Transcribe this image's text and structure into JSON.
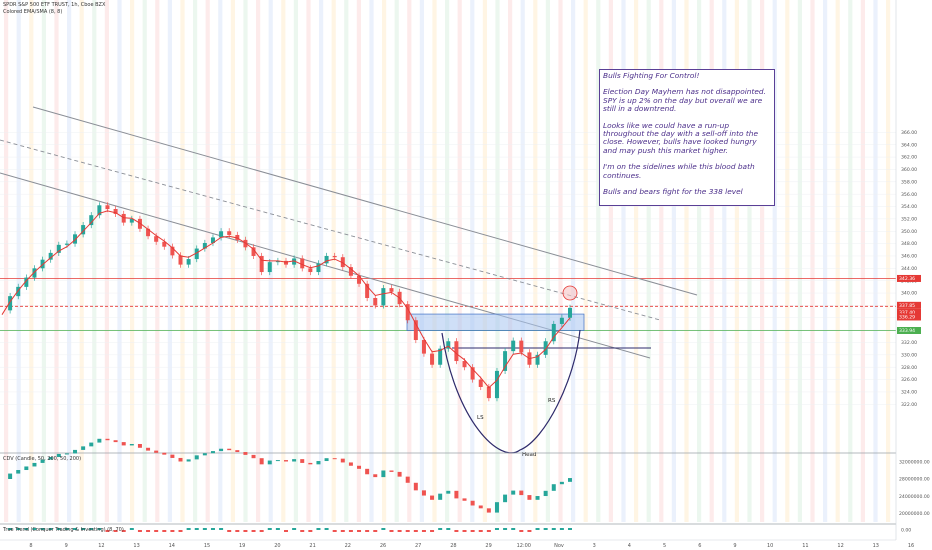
{
  "header": {
    "symbol": "SPDR S&P 500 ETF TRUST, 1h, Cboe BZX",
    "indicator": "Colored EMA/SMA (8, 8)",
    "cdv": "CDV (Candle, 50, 200, 50, 200)",
    "trend": "True Trend (Conquer Trading & Investing) (8, 70)"
  },
  "note": {
    "title": "Bulls Fighting For Control!",
    "p1": "Election Day Mayhem has not disappointed. SPY is up 2% on the day but overall we are still in a downtrend.",
    "p2": "Looks like we could have a run-up throughout the day with a sell-off into the close. However, bulls have looked hungry and may push this market higher.",
    "p3": "I'm on the sidelines while this blood bath continues.",
    "p4": "Bulls and bears fight for the 338 level"
  },
  "labels": {
    "ls": "LS",
    "rs": "RS",
    "head": "Head"
  },
  "chart_data": {
    "type": "line",
    "y_axis": {
      "range": [
        320,
        366
      ],
      "ticks": [
        "366.00",
        "364.00",
        "362.00",
        "360.00",
        "358.00",
        "356.00",
        "354.00",
        "352.00",
        "350.00",
        "348.00",
        "346.00",
        "344.00",
        "342.00",
        "340.00",
        "338.00",
        "336.00",
        "334.00",
        "332.00",
        "330.00",
        "328.00",
        "326.00",
        "324.00",
        "322.00"
      ]
    },
    "x_axis": {
      "ticks": [
        "8",
        "9",
        "12",
        "13",
        "14",
        "15",
        "19",
        "20",
        "21",
        "22",
        "26",
        "27",
        "28",
        "29",
        "12:00",
        "Nov",
        "3",
        "4",
        "5",
        "6",
        "9",
        "10",
        "11",
        "12",
        "13",
        "16"
      ]
    },
    "price_labels": [
      {
        "value": "342.36",
        "color": "#e53935"
      },
      {
        "value": "337.85",
        "color": "#e53935"
      },
      {
        "value": "337.40",
        "color": "#e53935"
      },
      {
        "value": "336.29",
        "color": "#e53935"
      },
      {
        "value": "333.94",
        "color": "#4caf50"
      }
    ],
    "horizontal_levels": [
      {
        "value": 342.36,
        "color": "#e53935",
        "style": "solid"
      },
      {
        "value": 337.85,
        "color": "#e53935",
        "style": "dashed"
      },
      {
        "value": 333.94,
        "color": "#4caf50",
        "style": "solid"
      }
    ],
    "series": [
      {
        "values": [
          337.2,
          339.5,
          341.0,
          342.5,
          344.0,
          345.4,
          346.5,
          347.8,
          348.0,
          349.5,
          351.0,
          352.6,
          354.2,
          353.6,
          352.8,
          351.4,
          352.0,
          350.4,
          349.2,
          348.3,
          347.5,
          346.1,
          344.6,
          345.5,
          347.2,
          348.1,
          349.0,
          350.0,
          349.4,
          348.6,
          347.4,
          346.0,
          343.4,
          345.0,
          345.2,
          344.6,
          345.6,
          344.0,
          343.4,
          344.8,
          346.0,
          345.8,
          344.2,
          342.8,
          341.5,
          339.2,
          338.0,
          340.8,
          340.2,
          338.2,
          335.6,
          332.4,
          330.2,
          328.4,
          331.0,
          332.2,
          329.0,
          328.0,
          326.0,
          324.8,
          323.0,
          327.4,
          330.6,
          332.3,
          330.4,
          328.4,
          330.0,
          332.2,
          335.0,
          336.0,
          337.6
        ]
      },
      {
        "name": "Colored EMA/SMA (8, 8)",
        "values": [
          336.5,
          338.6,
          340.4,
          342.0,
          343.4,
          344.6,
          345.7,
          346.8,
          347.5,
          348.6,
          350.0,
          351.4,
          352.9,
          353.3,
          353.0,
          352.2,
          352.1,
          351.3,
          350.3,
          349.3,
          348.4,
          347.3,
          346.0,
          345.8,
          346.5,
          347.3,
          348.1,
          349.0,
          349.2,
          348.9,
          348.1,
          347.1,
          345.3,
          345.2,
          345.2,
          345.0,
          345.2,
          344.6,
          344.1,
          344.4,
          345.2,
          345.5,
          344.9,
          343.9,
          342.8,
          341.1,
          339.6,
          339.9,
          340.1,
          339.2,
          337.5,
          335.0,
          332.6,
          330.5,
          330.7,
          331.4,
          330.2,
          329.2,
          327.7,
          326.3,
          324.7,
          325.9,
          328.1,
          330.1,
          330.3,
          329.4,
          329.7,
          330.9,
          332.9,
          334.4,
          336.0
        ]
      }
    ],
    "zones": [
      {
        "from": 333.94,
        "to": 336.6,
        "color": "#a8c4f0"
      }
    ],
    "patterns": [
      "LS",
      "Head",
      "RS"
    ],
    "cdv_axis_ticks": [
      "32000000.00",
      "28000000.00",
      "24000000.00",
      "20000000.00"
    ],
    "trend_axis_ticks": [
      "0.00"
    ]
  }
}
